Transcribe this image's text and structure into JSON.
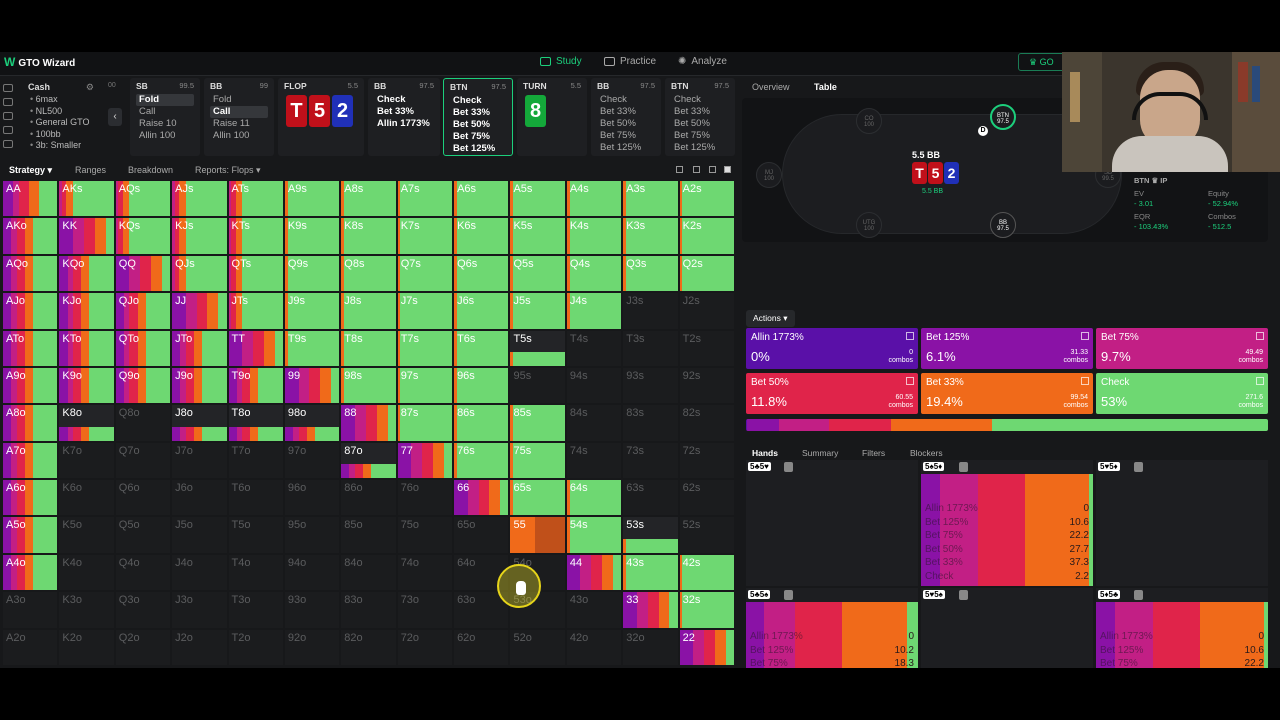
{
  "app": {
    "name": "GTO Wizard",
    "go_label": "GO"
  },
  "nav": {
    "study": "Study",
    "practice": "Practice",
    "analyze": "Analyze"
  },
  "colors": {
    "allin": "#5a10a8",
    "bet125": "#8a12a6",
    "bet75": "#c21f85",
    "bet50": "#e0244a",
    "bet33": "#f06a1a",
    "check": "#6ed872",
    "accent": "#1ccf7c"
  },
  "game": {
    "title": "Cash",
    "items": [
      "6max",
      "NL500",
      "General GTO",
      "100bb",
      "3b: Smaller"
    ]
  },
  "history_prefix": "00",
  "positions": [
    {
      "name": "SB",
      "stack": "99.5",
      "options": [
        "Fold",
        "Call",
        "Raise 10",
        "Allin 100"
      ],
      "selected": 0
    },
    {
      "name": "BB",
      "stack": "99",
      "options": [
        "Fold",
        "Call",
        "Raise 11",
        "Allin 100"
      ],
      "selected": 1
    },
    {
      "name": "FLOP",
      "stack": "5.5",
      "cards": [
        "T",
        "5",
        "2"
      ]
    },
    {
      "name": "BB",
      "stack": "97.5",
      "options": [
        "Check",
        "Bet 33%",
        "Allin 1773%"
      ],
      "selected": 0
    },
    {
      "name": "BTN",
      "stack": "97.5",
      "options": [
        "Check",
        "Bet 33%",
        "Bet 50%",
        "Bet 75%",
        "Bet 125%"
      ],
      "selected": 0
    },
    {
      "name": "TURN",
      "stack": "5.5",
      "cards": [
        "8"
      ]
    },
    {
      "name": "BB",
      "stack": "97.5",
      "options": [
        "Check",
        "Bet 33%",
        "Bet 50%",
        "Bet 75%",
        "Bet 125%"
      ]
    },
    {
      "name": "BTN",
      "stack": "97.5",
      "options": [
        "Check",
        "Bet 33%",
        "Bet 50%",
        "Bet 75%",
        "Bet 125%"
      ]
    }
  ],
  "tabs": [
    "Strategy",
    "Ranges",
    "Breakdown",
    "Reports: Flops"
  ],
  "grid": {
    "labels": [
      [
        "AA",
        "AKs",
        "AQs",
        "AJs",
        "ATs",
        "A9s",
        "A8s",
        "A7s",
        "A6s",
        "A5s",
        "A4s",
        "A3s",
        "A2s"
      ],
      [
        "AKo",
        "KK",
        "KQs",
        "KJs",
        "KTs",
        "K9s",
        "K8s",
        "K7s",
        "K6s",
        "K5s",
        "K4s",
        "K3s",
        "K2s"
      ],
      [
        "AQo",
        "KQo",
        "QQ",
        "QJs",
        "QTs",
        "Q9s",
        "Q8s",
        "Q7s",
        "Q6s",
        "Q5s",
        "Q4s",
        "Q3s",
        "Q2s"
      ],
      [
        "AJo",
        "KJo",
        "QJo",
        "JJ",
        "JTs",
        "J9s",
        "J8s",
        "J7s",
        "J6s",
        "J5s",
        "J4s",
        "J3s",
        "J2s"
      ],
      [
        "ATo",
        "KTo",
        "QTo",
        "JTo",
        "TT",
        "T9s",
        "T8s",
        "T7s",
        "T6s",
        "T5s",
        "T4s",
        "T3s",
        "T2s"
      ],
      [
        "A9o",
        "K9o",
        "Q9o",
        "J9o",
        "T9o",
        "99",
        "98s",
        "97s",
        "96s",
        "95s",
        "94s",
        "93s",
        "92s"
      ],
      [
        "A8o",
        "K8o",
        "Q8o",
        "J8o",
        "T8o",
        "98o",
        "88",
        "87s",
        "86s",
        "85s",
        "84s",
        "83s",
        "82s"
      ],
      [
        "A7o",
        "K7o",
        "Q7o",
        "J7o",
        "T7o",
        "97o",
        "87o",
        "77",
        "76s",
        "75s",
        "74s",
        "73s",
        "72s"
      ],
      [
        "A6o",
        "K6o",
        "Q6o",
        "J6o",
        "T6o",
        "96o",
        "86o",
        "76o",
        "66",
        "65s",
        "64s",
        "63s",
        "62s"
      ],
      [
        "A5o",
        "K5o",
        "Q5o",
        "J5o",
        "T5o",
        "95o",
        "85o",
        "75o",
        "65o",
        "55",
        "54s",
        "53s",
        "52s"
      ],
      [
        "A4o",
        "K4o",
        "Q4o",
        "J4o",
        "T4o",
        "94o",
        "84o",
        "74o",
        "64o",
        "54o",
        "44",
        "43s",
        "42s"
      ],
      [
        "A3o",
        "K3o",
        "Q3o",
        "J3o",
        "T3o",
        "93o",
        "83o",
        "73o",
        "63o",
        "53o",
        "43o",
        "33",
        "32s"
      ],
      [
        "A2o",
        "K2o",
        "Q2o",
        "J2o",
        "T2o",
        "92o",
        "82o",
        "72o",
        "62o",
        "52o",
        "42o",
        "32o",
        "22"
      ]
    ],
    "dim": [
      "0000000000000",
      "0000000000000",
      "0000000000000",
      "0000000000011",
      "0000000002111",
      "0000000001111",
      "0010000000111",
      "0111110000111",
      "0111111100011",
      "0111111110001",
      "0111111111000",
      "1111111111100",
      "1111111111110"
    ]
  },
  "right_tabs": [
    "Overview",
    "Table"
  ],
  "table": {
    "pot": "5.5 BB",
    "pot_sub": "5.5 BB",
    "board": [
      "T",
      "5",
      "2"
    ],
    "seats": [
      {
        "name": "CO",
        "stack": "100"
      },
      {
        "name": "BTN",
        "stack": "97.5"
      },
      {
        "name": "MJ",
        "stack": "100"
      },
      {
        "name": "SB",
        "stack": "99.5"
      },
      {
        "name": "UTG",
        "stack": "100"
      },
      {
        "name": "BB",
        "stack": "97.5"
      }
    ],
    "dealer": "D",
    "player_label": "BTN ♛ IP",
    "stats": [
      {
        "k": "EV",
        "v": "- 3.01"
      },
      {
        "k": "Equity",
        "v": "- 52.94%"
      },
      {
        "k": "EQR",
        "v": "- 103.43%"
      },
      {
        "k": "Combos",
        "v": "- 512.5"
      }
    ]
  },
  "actions_label": "Actions",
  "actions": [
    {
      "name": "Allin 1773%",
      "pct": "0%",
      "combos": "0",
      "unit": "combos",
      "color": "#5a10a8",
      "freq": 0.002
    },
    {
      "name": "Bet 125%",
      "pct": "6.1%",
      "combos": "31.33",
      "unit": "combos",
      "color": "#8a12a6",
      "freq": 0.061
    },
    {
      "name": "Bet 75%",
      "pct": "9.7%",
      "combos": "49.49",
      "unit": "combos",
      "color": "#c21f85",
      "freq": 0.097
    },
    {
      "name": "Bet 50%",
      "pct": "11.8%",
      "combos": "60.55",
      "unit": "combos",
      "color": "#e0244a",
      "freq": 0.118
    },
    {
      "name": "Bet 33%",
      "pct": "19.4%",
      "combos": "99.54",
      "unit": "combos",
      "color": "#f06a1a",
      "freq": 0.194
    },
    {
      "name": "Check",
      "pct": "53%",
      "combos": "271.6",
      "unit": "combos",
      "color": "#6ed872",
      "freq": 0.53
    }
  ],
  "bottom_tabs": [
    "Hands",
    "Summary",
    "Filters",
    "Blockers"
  ],
  "combos": [
    {
      "tag": "5♣5♥",
      "active": false
    },
    {
      "tag": "5♠5♦",
      "active": true,
      "values": [
        "0",
        "10.6",
        "22.2",
        "27.7",
        "37.3",
        "2.2"
      ],
      "freq": [
        0.002,
        0.106,
        0.222,
        0.277,
        0.373,
        0.022
      ]
    },
    {
      "tag": "5♥5♦",
      "active": false
    },
    {
      "tag": "5♣5♠",
      "active": true,
      "values": [
        "0",
        "10.2",
        "18.3",
        "27.3",
        "38",
        "6.2"
      ],
      "freq": [
        0.002,
        0.102,
        0.183,
        0.273,
        0.38,
        0.062
      ]
    },
    {
      "tag": "5♥5♠",
      "active": false
    },
    {
      "tag": "5♦5♣",
      "active": true,
      "values": [
        "0",
        "10.6",
        "22.2",
        "27.7",
        "37.3",
        "2.2"
      ],
      "freq": [
        0.002,
        0.106,
        0.222,
        0.277,
        0.373,
        0.022
      ]
    }
  ],
  "combo_overlay": [
    "Allin 1773%",
    "Bet 125%",
    "Bet 75%",
    "Bet 50%",
    "Bet 33%",
    "Check"
  ]
}
